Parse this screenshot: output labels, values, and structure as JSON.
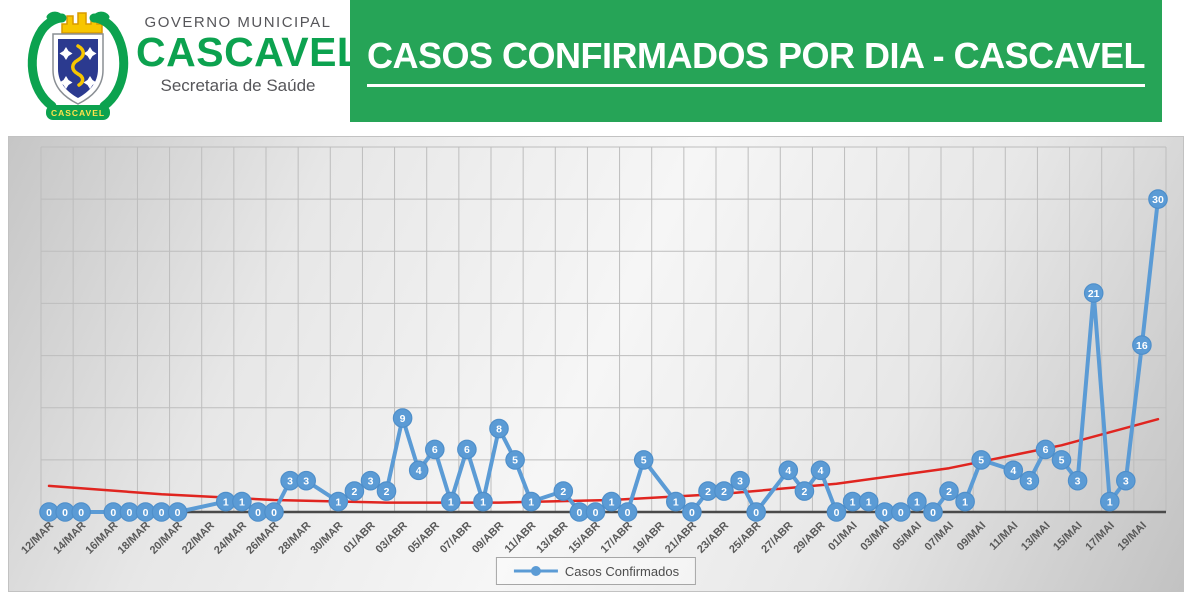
{
  "header": {
    "logo": {
      "government_label": "GOVERNO MUNICIPAL",
      "city_name": "CASCAVEL",
      "department": "Secretaria de Saúde",
      "crest_banner": "CASCAVEL"
    },
    "banner": {
      "title": "CASOS CONFIRMADOS POR DIA - CASCAVEL"
    }
  },
  "colors": {
    "banner_green": "#26a457",
    "logo_green": "#0ca24f",
    "series_blue": "#5b9bd5",
    "marker_edge": "#4f8fca",
    "trend_red": "#e02520",
    "gridline": "#bdbdbd",
    "axis": "#4a4a4a",
    "tick_text": "#595959"
  },
  "chart_data": {
    "type": "line",
    "title": "CASOS CONFIRMADOS POR DIA - CASCAVEL",
    "xlabel": "",
    "ylabel": "",
    "ylim": [
      0,
      35
    ],
    "y_gridline_step": 5,
    "grid": true,
    "x_label_interval": 2,
    "legend_position": "bottom",
    "categories": [
      "12/MAR",
      "13/MAR",
      "14/MAR",
      "15/MAR",
      "16/MAR",
      "17/MAR",
      "18/MAR",
      "19/MAR",
      "20/MAR",
      "21/MAR",
      "22/MAR",
      "23/MAR",
      "24/MAR",
      "25/MAR",
      "26/MAR",
      "27/MAR",
      "28/MAR",
      "29/MAR",
      "30/MAR",
      "31/MAR",
      "01/ABR",
      "02/ABR",
      "03/ABR",
      "04/ABR",
      "05/ABR",
      "06/ABR",
      "07/ABR",
      "08/ABR",
      "09/ABR",
      "10/ABR",
      "11/ABR",
      "12/ABR",
      "13/ABR",
      "14/ABR",
      "15/ABR",
      "16/ABR",
      "17/ABR",
      "18/ABR",
      "19/ABR",
      "20/ABR",
      "21/ABR",
      "22/ABR",
      "23/ABR",
      "24/ABR",
      "25/ABR",
      "26/ABR",
      "27/ABR",
      "28/ABR",
      "29/ABR",
      "30/ABR",
      "01/MAI",
      "02/MAI",
      "03/MAI",
      "04/MAI",
      "05/MAI",
      "06/MAI",
      "07/MAI",
      "08/MAI",
      "09/MAI",
      "10/MAI",
      "11/MAI",
      "12/MAI",
      "13/MAI",
      "14/MAI",
      "15/MAI",
      "16/MAI",
      "17/MAI",
      "18/MAI",
      "19/MAI",
      "20/MAI"
    ],
    "series": [
      {
        "name": "Casos Confirmados",
        "color": "#5b9bd5",
        "label_color": "#ffffff",
        "values": [
          0,
          0,
          0,
          null,
          0,
          0,
          0,
          0,
          0,
          null,
          null,
          1,
          1,
          0,
          0,
          3,
          3,
          null,
          1,
          2,
          3,
          2,
          9,
          4,
          6,
          1,
          6,
          1,
          8,
          5,
          1,
          null,
          2,
          0,
          0,
          1,
          0,
          5,
          null,
          1,
          0,
          2,
          2,
          3,
          0,
          null,
          4,
          2,
          4,
          0,
          1,
          1,
          0,
          0,
          1,
          0,
          2,
          1,
          5,
          null,
          4,
          3,
          6,
          5,
          3,
          21,
          1,
          3,
          16,
          30
        ]
      }
    ],
    "trendline": {
      "type": "polynomial",
      "color": "#e02520",
      "points_day_value": [
        [
          1,
          2.5
        ],
        [
          8,
          1.7
        ],
        [
          15,
          1.15
        ],
        [
          22,
          0.9
        ],
        [
          29,
          0.9
        ],
        [
          36,
          1.15
        ],
        [
          43,
          1.75
        ],
        [
          50,
          2.7
        ],
        [
          57,
          4.2
        ],
        [
          64,
          6.4
        ],
        [
          70,
          8.9
        ]
      ]
    }
  }
}
